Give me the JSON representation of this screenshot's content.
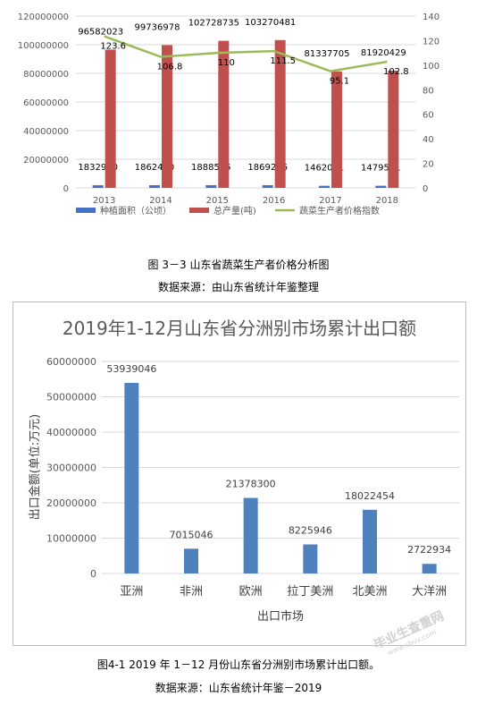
{
  "chart_data": [
    {
      "type": "bar",
      "title": "",
      "categories": [
        "2013",
        "2014",
        "2015",
        "2016",
        "2017",
        "2018"
      ],
      "y_left_ticks": [
        "0",
        "20000000",
        "40000000",
        "60000000",
        "80000000",
        "100000000",
        "120000000"
      ],
      "y_right_ticks": [
        "0",
        "20",
        "40",
        "60",
        "80",
        "100",
        "120",
        "140"
      ],
      "ylim_left": [
        0,
        120000000
      ],
      "ylim_right": [
        0,
        140
      ],
      "grid": true,
      "legend_position": "bottom",
      "series": [
        {
          "name": "种植面积（公顷）",
          "kind": "bar",
          "axis": "left",
          "color": "#4472c4",
          "values": [
            1832920,
            1862410,
            1888555,
            1869266,
            1462041,
            1479551
          ],
          "labels": [
            "1832920",
            "1862410",
            "1888555",
            "1869266",
            "1462041",
            "1479551"
          ]
        },
        {
          "name": "总产量(吨)",
          "kind": "bar",
          "axis": "left",
          "color": "#c0504d",
          "values": [
            96582023,
            99736978,
            102728735,
            103270481,
            81337705,
            81920429
          ],
          "labels": [
            "96582023",
            "99736978",
            "102728735",
            "103270481",
            "81337705",
            "81920429"
          ]
        },
        {
          "name": "蔬菜生产者价格指数",
          "kind": "line",
          "axis": "right",
          "color": "#9bbb59",
          "values": [
            123.6,
            106.8,
            110,
            111.5,
            95.1,
            102.8
          ],
          "labels": [
            "123.6",
            "106.8",
            "110",
            "111.5",
            "95.1",
            "102.8"
          ]
        }
      ]
    },
    {
      "type": "bar",
      "title": "2019年1-12月山东省分洲别市场累计出口额",
      "xlabel": "出口市场",
      "ylabel": "出口金额(单位:万元)",
      "ylim": [
        0,
        60000000
      ],
      "y_ticks": [
        "0",
        "10000000",
        "20000000",
        "30000000",
        "40000000",
        "50000000",
        "60000000"
      ],
      "grid": true,
      "categories": [
        "亚洲",
        "非洲",
        "欧洲",
        "拉丁美洲",
        "北美洲",
        "大洋洲"
      ],
      "values": [
        53939046,
        7015046,
        21378300,
        8225946,
        18022454,
        2722934
      ],
      "labels": [
        "53939046",
        "7015046",
        "21378300",
        "8225946",
        "18022454",
        "2722934"
      ],
      "color": "#4f81bd"
    }
  ],
  "captions": {
    "fig1": "图 3－3 山东省蔬菜生产者价格分析图",
    "source1": "数据来源：由山东省统计年鉴整理",
    "fig2": "图4-1 2019 年 1－12 月份山东省分洲别市场累计出口额。",
    "source2": "数据来源：山东省统计年鉴－2019"
  },
  "watermark": {
    "main": "毕业生查重网",
    "sub": "www.sbvv.com"
  }
}
